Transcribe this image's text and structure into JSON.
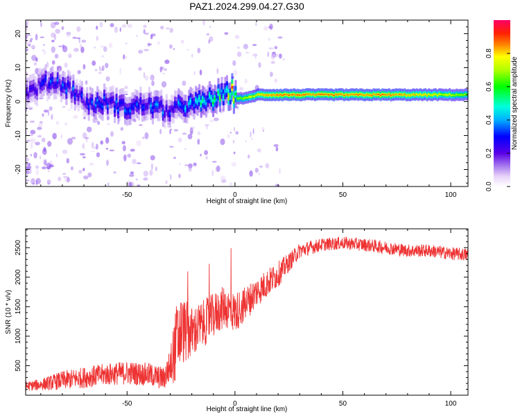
{
  "title": "PAZ1.2024.299.04.27.G30",
  "chart_data": [
    {
      "type": "heatmap",
      "xlabel": "Height of straight line (km)",
      "ylabel": "Frequency (Hz)",
      "xlim": [
        -97,
        108
      ],
      "ylim": [
        -25,
        24
      ],
      "xticks": [
        -50,
        0,
        50,
        100
      ],
      "xtick_labels": [
        "-50",
        "0",
        "50",
        "100"
      ],
      "yticks": [
        -20,
        -10,
        0,
        10,
        20
      ],
      "ytick_labels": [
        "-20",
        "-10",
        "0",
        "10",
        "20"
      ],
      "colorbar": {
        "label": "Normalized spectral amplitude",
        "range": [
          0,
          1
        ],
        "ticks": [
          0.0,
          0.2,
          0.4,
          0.6,
          0.8
        ],
        "tick_labels": [
          "0.0",
          "0.2",
          "0.4",
          "0.6",
          "0.8"
        ]
      },
      "ridge": {
        "x": [
          -95,
          -90,
          -85,
          -80,
          -75,
          -70,
          -65,
          -60,
          -55,
          -50,
          -45,
          -40,
          -35,
          -30,
          -25,
          -20,
          -15,
          -10,
          -5,
          -2,
          0,
          5,
          10,
          15,
          20,
          30,
          40,
          50,
          60,
          70,
          80,
          90,
          100,
          108
        ],
        "freq": [
          3,
          5,
          6,
          5,
          3,
          0,
          -1,
          0,
          -1,
          -2,
          -1,
          -1,
          -2,
          -3,
          -1,
          -1,
          0,
          1,
          2,
          3,
          1,
          1,
          2,
          2,
          2,
          2,
          2,
          2,
          2,
          2,
          2,
          2,
          2,
          2
        ],
        "amplitude": [
          0.2,
          0.25,
          0.3,
          0.3,
          0.3,
          0.25,
          0.3,
          0.3,
          0.3,
          0.3,
          0.3,
          0.35,
          0.35,
          0.3,
          0.35,
          0.4,
          0.45,
          0.5,
          0.6,
          0.7,
          0.65,
          0.75,
          0.8,
          0.85,
          0.9,
          0.9,
          0.9,
          0.9,
          0.9,
          0.9,
          0.85,
          0.8,
          0.75,
          0.7
        ]
      }
    },
    {
      "type": "line",
      "xlabel": "Height of straight line (km)",
      "ylabel": "SNR (10 * v/v)",
      "xlim": [
        -97,
        108
      ],
      "ylim": [
        0,
        2820
      ],
      "xticks": [
        -50,
        0,
        50,
        100
      ],
      "xtick_labels": [
        "-50",
        "0",
        "50",
        "100"
      ],
      "yticks": [
        500,
        1000,
        1500,
        2000,
        2500
      ],
      "ytick_labels": [
        "500",
        "1000",
        "1500",
        "2000",
        "2500"
      ],
      "color": "#ee3333",
      "series": [
        {
          "x": [
            -97,
            -90,
            -80,
            -70,
            -60,
            -50,
            -40,
            -33,
            -30,
            -27,
            -25,
            -20,
            -15,
            -10,
            -5,
            0,
            5,
            10,
            15,
            20,
            25,
            30,
            40,
            50,
            60,
            70,
            80,
            90,
            100,
            108
          ],
          "y": [
            150,
            180,
            250,
            300,
            350,
            380,
            350,
            280,
            500,
            900,
            1100,
            1050,
            1200,
            1350,
            1500,
            1400,
            1550,
            1750,
            1900,
            2050,
            2250,
            2450,
            2550,
            2580,
            2550,
            2500,
            2450,
            2450,
            2400,
            2380
          ],
          "noise": [
            80,
            100,
            160,
            180,
            190,
            200,
            200,
            200,
            300,
            700,
            600,
            450,
            400,
            380,
            360,
            340,
            300,
            260,
            240,
            220,
            160,
            130,
            110,
            110,
            110,
            110,
            110,
            110,
            110,
            110
          ]
        }
      ]
    }
  ]
}
